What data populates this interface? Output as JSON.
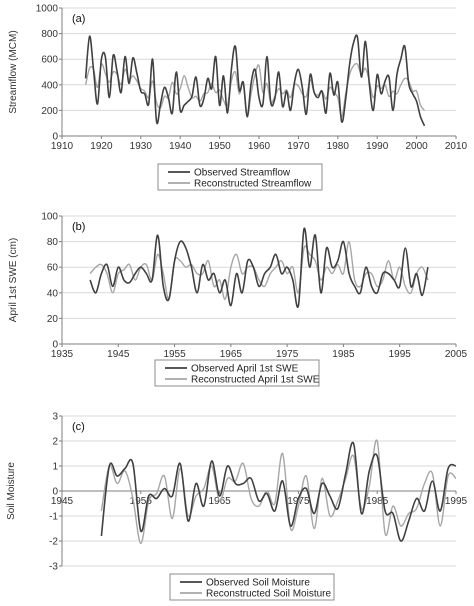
{
  "colors": {
    "observed": "#404040",
    "reconstructed": "#a6a6a6",
    "grid": "#d9d9d9",
    "axis": "#7f7f7f"
  },
  "chart_data": [
    {
      "type": "line",
      "panel_label": "(a)",
      "ylabel": "Streamflow (MCM)",
      "xlim": [
        1910,
        2010
      ],
      "ylim": [
        0,
        1000
      ],
      "x_ticks": [
        1910,
        1920,
        1930,
        1940,
        1950,
        1960,
        1970,
        1980,
        1990,
        2000,
        2010
      ],
      "y_ticks": [
        0,
        200,
        400,
        600,
        800,
        1000
      ],
      "y_gridlines": [
        200,
        400,
        600,
        800,
        1000
      ],
      "x_axis_at": 0,
      "legend_placement": "bottom-center",
      "series": [
        {
          "name": "Observed Streamflow",
          "x": [
            1916,
            1917,
            1918,
            1919,
            1920,
            1921,
            1922,
            1923,
            1924,
            1925,
            1926,
            1927,
            1928,
            1929,
            1930,
            1931,
            1932,
            1933,
            1934,
            1935,
            1936,
            1937,
            1938,
            1939,
            1940,
            1941,
            1942,
            1943,
            1944,
            1945,
            1946,
            1947,
            1948,
            1949,
            1950,
            1951,
            1952,
            1953,
            1954,
            1955,
            1956,
            1957,
            1958,
            1959,
            1960,
            1961,
            1962,
            1963,
            1964,
            1965,
            1966,
            1967,
            1968,
            1969,
            1970,
            1971,
            1972,
            1973,
            1974,
            1975,
            1976,
            1977,
            1978,
            1979,
            1980,
            1981,
            1982,
            1983,
            1984,
            1985,
            1986,
            1987,
            1988,
            1989,
            1990,
            1991,
            1992,
            1993,
            1994,
            1995,
            1996,
            1997,
            1998,
            1999,
            2000,
            2001,
            2002
          ],
          "y": [
            450,
            780,
            520,
            250,
            600,
            620,
            300,
            630,
            500,
            340,
            620,
            410,
            610,
            490,
            350,
            330,
            250,
            600,
            110,
            250,
            380,
            300,
            180,
            500,
            200,
            240,
            270,
            310,
            460,
            240,
            290,
            450,
            370,
            620,
            240,
            470,
            180,
            520,
            700,
            360,
            420,
            150,
            410,
            520,
            300,
            250,
            620,
            260,
            290,
            500,
            230,
            350,
            200,
            420,
            520,
            380,
            170,
            480,
            340,
            300,
            350,
            180,
            490,
            320,
            420,
            110,
            290,
            560,
            730,
            770,
            460,
            740,
            410,
            200,
            480,
            330,
            430,
            460,
            200,
            480,
            600,
            700,
            410,
            330,
            270,
            150,
            80
          ]
        },
        {
          "name": "Reconstructed Streamflow",
          "x": [
            1916,
            1917,
            1918,
            1919,
            1920,
            1921,
            1922,
            1923,
            1924,
            1925,
            1926,
            1927,
            1928,
            1929,
            1930,
            1931,
            1932,
            1933,
            1934,
            1935,
            1936,
            1937,
            1938,
            1939,
            1940,
            1941,
            1942,
            1943,
            1944,
            1945,
            1946,
            1947,
            1948,
            1949,
            1950,
            1951,
            1952,
            1953,
            1954,
            1955,
            1956,
            1957,
            1958,
            1959,
            1960,
            1961,
            1962,
            1963,
            1964,
            1965,
            1966,
            1967,
            1968,
            1969,
            1970,
            1971,
            1972,
            1973,
            1974,
            1975,
            1976,
            1977,
            1978,
            1979,
            1980,
            1981,
            1982,
            1983,
            1984,
            1985,
            1986,
            1987,
            1988,
            1989,
            1990,
            1991,
            1992,
            1993,
            1994,
            1995,
            1996,
            1997,
            1998,
            1999,
            2000,
            2001,
            2002
          ],
          "y": [
            400,
            530,
            520,
            380,
            560,
            490,
            420,
            500,
            480,
            400,
            520,
            440,
            470,
            430,
            370,
            350,
            300,
            430,
            260,
            220,
            310,
            300,
            420,
            330,
            370,
            470,
            380,
            300,
            310,
            270,
            330,
            340,
            410,
            340,
            360,
            280,
            240,
            430,
            500,
            330,
            420,
            160,
            330,
            480,
            550,
            340,
            410,
            260,
            310,
            370,
            330,
            360,
            300,
            400,
            390,
            330,
            310,
            440,
            340,
            320,
            350,
            290,
            380,
            340,
            300,
            150,
            330,
            480,
            550,
            560,
            480,
            530,
            430,
            300,
            390,
            370,
            400,
            310,
            350,
            330,
            400,
            450,
            430,
            350,
            350,
            240,
            200
          ]
        }
      ]
    },
    {
      "type": "line",
      "panel_label": "(b)",
      "ylabel": "April 1st SWE (cm)",
      "xlim": [
        1935,
        2005
      ],
      "ylim": [
        0,
        100
      ],
      "x_ticks": [
        1935,
        1945,
        1955,
        1965,
        1975,
        1985,
        1995,
        2005
      ],
      "y_ticks": [
        0,
        20,
        40,
        60,
        80,
        100
      ],
      "y_gridlines": [
        20,
        40,
        60,
        80,
        100
      ],
      "x_axis_at": 0,
      "legend_placement": "bottom-center",
      "series": [
        {
          "name": "Observed April 1st SWE",
          "x": [
            1940,
            1941,
            1942,
            1943,
            1944,
            1945,
            1946,
            1947,
            1948,
            1949,
            1950,
            1951,
            1952,
            1953,
            1954,
            1955,
            1956,
            1957,
            1958,
            1959,
            1960,
            1961,
            1962,
            1963,
            1964,
            1965,
            1966,
            1967,
            1968,
            1969,
            1970,
            1971,
            1972,
            1973,
            1974,
            1975,
            1976,
            1977,
            1978,
            1979,
            1980,
            1981,
            1982,
            1983,
            1984,
            1985,
            1986,
            1987,
            1988,
            1989,
            1990,
            1991,
            1992,
            1993,
            1994,
            1995,
            1996,
            1997,
            1998,
            1999,
            2000
          ],
          "y": [
            50,
            40,
            55,
            62,
            45,
            60,
            50,
            48,
            55,
            60,
            55,
            50,
            85,
            45,
            35,
            65,
            80,
            75,
            60,
            40,
            62,
            50,
            55,
            40,
            50,
            30,
            55,
            40,
            65,
            60,
            45,
            55,
            60,
            70,
            55,
            60,
            50,
            30,
            90,
            60,
            85,
            40,
            75,
            60,
            65,
            80,
            55,
            45,
            40,
            60,
            45,
            40,
            55,
            55,
            50,
            45,
            75,
            45,
            55,
            38,
            60
          ]
        },
        {
          "name": "Reconstructed April 1st SWE",
          "x": [
            1940,
            1941,
            1942,
            1943,
            1944,
            1945,
            1946,
            1947,
            1948,
            1949,
            1950,
            1951,
            1952,
            1953,
            1954,
            1955,
            1956,
            1957,
            1958,
            1959,
            1960,
            1961,
            1962,
            1963,
            1964,
            1965,
            1966,
            1967,
            1968,
            1969,
            1970,
            1971,
            1972,
            1973,
            1974,
            1975,
            1976,
            1977,
            1978,
            1979,
            1980,
            1981,
            1982,
            1983,
            1984,
            1985,
            1986,
            1987,
            1988,
            1989,
            1990,
            1991,
            1992,
            1993,
            1994,
            1995,
            1996,
            1997,
            1998,
            1999,
            2000
          ],
          "y": [
            55,
            60,
            62,
            55,
            40,
            55,
            58,
            62,
            50,
            60,
            62,
            50,
            70,
            55,
            35,
            65,
            65,
            60,
            62,
            55,
            55,
            65,
            45,
            50,
            35,
            60,
            70,
            55,
            60,
            60,
            50,
            45,
            55,
            60,
            65,
            55,
            60,
            40,
            75,
            70,
            65,
            50,
            60,
            55,
            62,
            55,
            80,
            50,
            45,
            55,
            55,
            45,
            50,
            65,
            50,
            60,
            45,
            40,
            55,
            60,
            50
          ]
        }
      ]
    },
    {
      "type": "line",
      "panel_label": "(c)",
      "ylabel": "Soil Moisture",
      "xlim": [
        1945,
        1995
      ],
      "ylim": [
        -3,
        3
      ],
      "x_ticks": [
        1945,
        1955,
        1965,
        1975,
        1985,
        1995
      ],
      "y_ticks": [
        -3,
        -2,
        -1,
        0,
        1,
        2,
        3
      ],
      "y_gridlines": [
        -3,
        -2,
        -1,
        1,
        2,
        3
      ],
      "x_axis_at": 0,
      "legend_placement": "bottom-center",
      "series": [
        {
          "name": "Observed Soil Moisture",
          "x": [
            1950,
            1951,
            1952,
            1953,
            1954,
            1955,
            1956,
            1957,
            1958,
            1959,
            1960,
            1961,
            1962,
            1963,
            1964,
            1965,
            1966,
            1967,
            1968,
            1969,
            1970,
            1971,
            1972,
            1973,
            1974,
            1975,
            1976,
            1977,
            1978,
            1979,
            1980,
            1981,
            1982,
            1983,
            1984,
            1985,
            1986,
            1987,
            1988,
            1989,
            1990,
            1991,
            1992,
            1993,
            1994,
            1995
          ],
          "y": [
            -1.8,
            1.0,
            0.6,
            0.9,
            1.1,
            -1.6,
            -0.2,
            -0.3,
            0.1,
            -0.2,
            1.1,
            -1.2,
            0.3,
            -0.6,
            1.2,
            -0.2,
            1.0,
            0.3,
            0.3,
            0.5,
            -0.4,
            -0.1,
            -0.8,
            0.4,
            -1.4,
            -0.3,
            0.1,
            -0.9,
            0.3,
            -0.2,
            -0.7,
            0.7,
            1.9,
            -0.9,
            0.8,
            1.4,
            -0.8,
            -0.9,
            -2.0,
            -1.2,
            -0.3,
            -0.8,
            0.4,
            -0.8,
            0.9,
            1.0
          ]
        },
        {
          "name": "Reconstructed Soil Moisture",
          "x": [
            1950,
            1951,
            1952,
            1953,
            1954,
            1955,
            1956,
            1957,
            1958,
            1959,
            1960,
            1961,
            1962,
            1963,
            1964,
            1965,
            1966,
            1967,
            1968,
            1969,
            1970,
            1971,
            1972,
            1973,
            1974,
            1975,
            1976,
            1977,
            1978,
            1979,
            1980,
            1981,
            1982,
            1983,
            1984,
            1985,
            1986,
            1987,
            1988,
            1989,
            1990,
            1991,
            1992,
            1993,
            1994,
            1995
          ],
          "y": [
            -0.8,
            1.0,
            0.3,
            0.8,
            -0.3,
            -2.1,
            -0.4,
            -0.1,
            0.6,
            -1.1,
            0.9,
            -1.0,
            -0.2,
            0.1,
            1.0,
            -0.4,
            0.5,
            0.4,
            1.1,
            -0.3,
            -0.6,
            0.0,
            -0.5,
            1.5,
            -1.5,
            -0.6,
            0.6,
            -1.5,
            0.5,
            -1.0,
            -0.4,
            0.5,
            1.4,
            -0.7,
            0.2,
            2.0,
            -1.7,
            -0.6,
            -1.4,
            -0.9,
            -0.7,
            0.3,
            0.7,
            -1.4,
            0.6,
            0.5
          ]
        }
      ]
    }
  ]
}
